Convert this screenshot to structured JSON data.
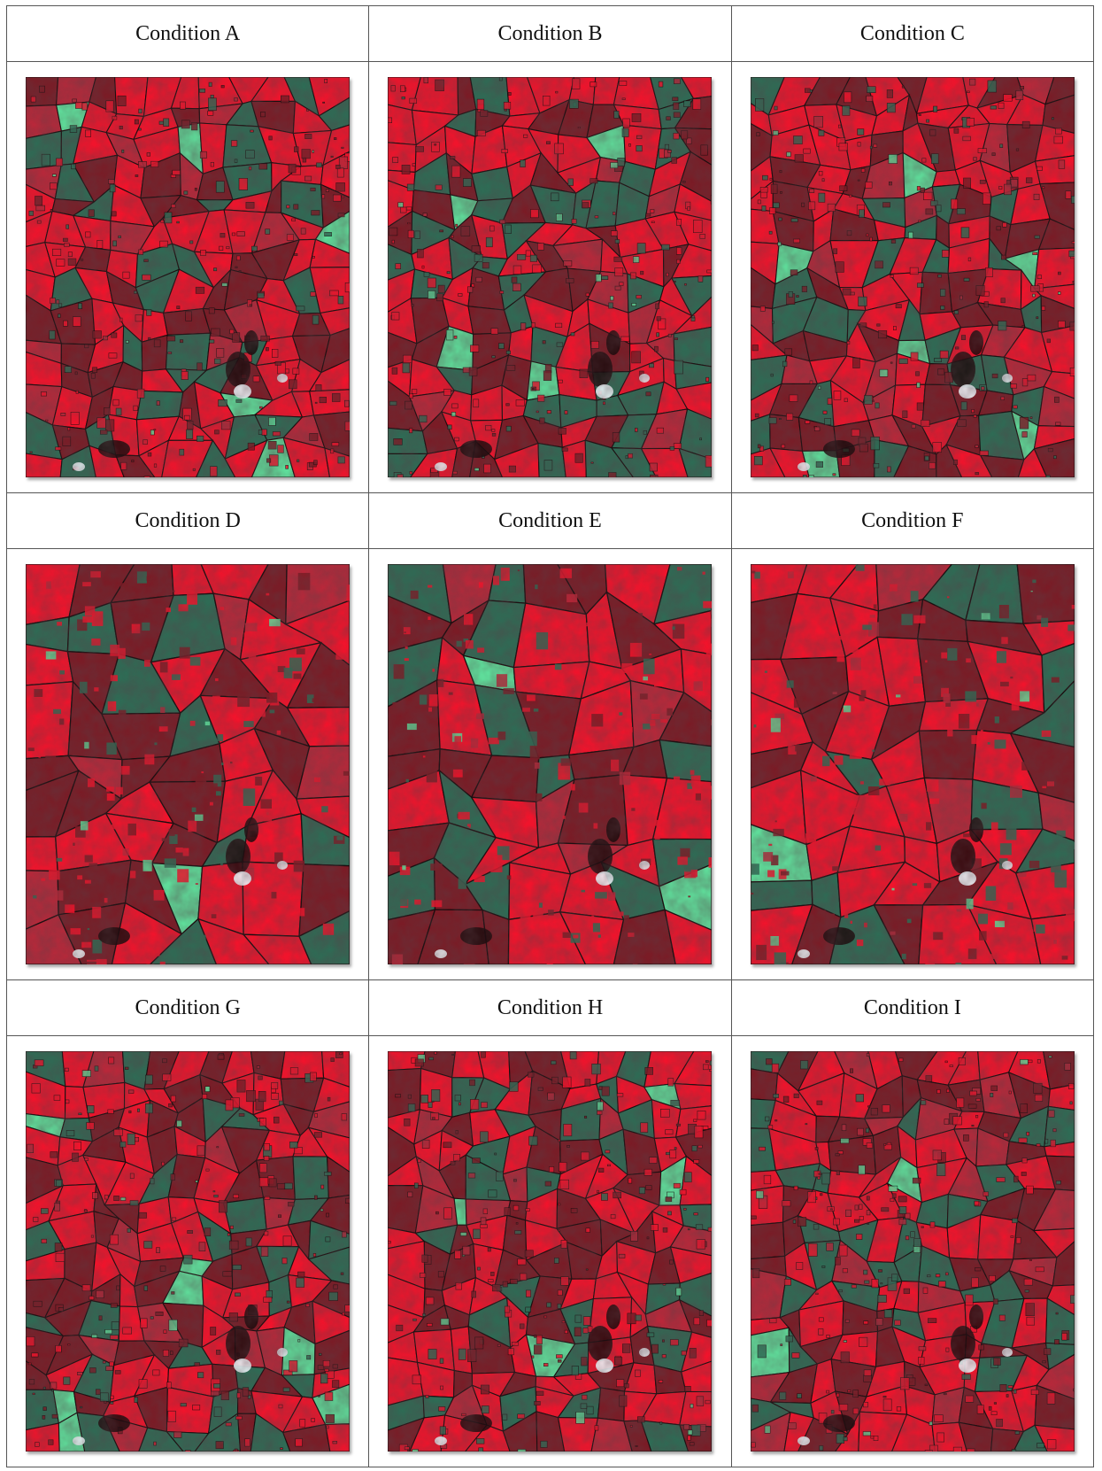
{
  "colors": {
    "field_red": "#f0142c",
    "field_dark": "#7a1c26",
    "vegetation_green": "#2f6b55",
    "bright_green": "#5fdc9a",
    "boundary": "#1a0d0f",
    "cloud": "#e8f0f4"
  },
  "panels": [
    {
      "label": "Condition A"
    },
    {
      "label": "Condition B"
    },
    {
      "label": "Condition C"
    },
    {
      "label": "Condition D"
    },
    {
      "label": "Condition E"
    },
    {
      "label": "Condition F"
    },
    {
      "label": "Condition G"
    },
    {
      "label": "Condition H"
    },
    {
      "label": "Condition I"
    }
  ]
}
